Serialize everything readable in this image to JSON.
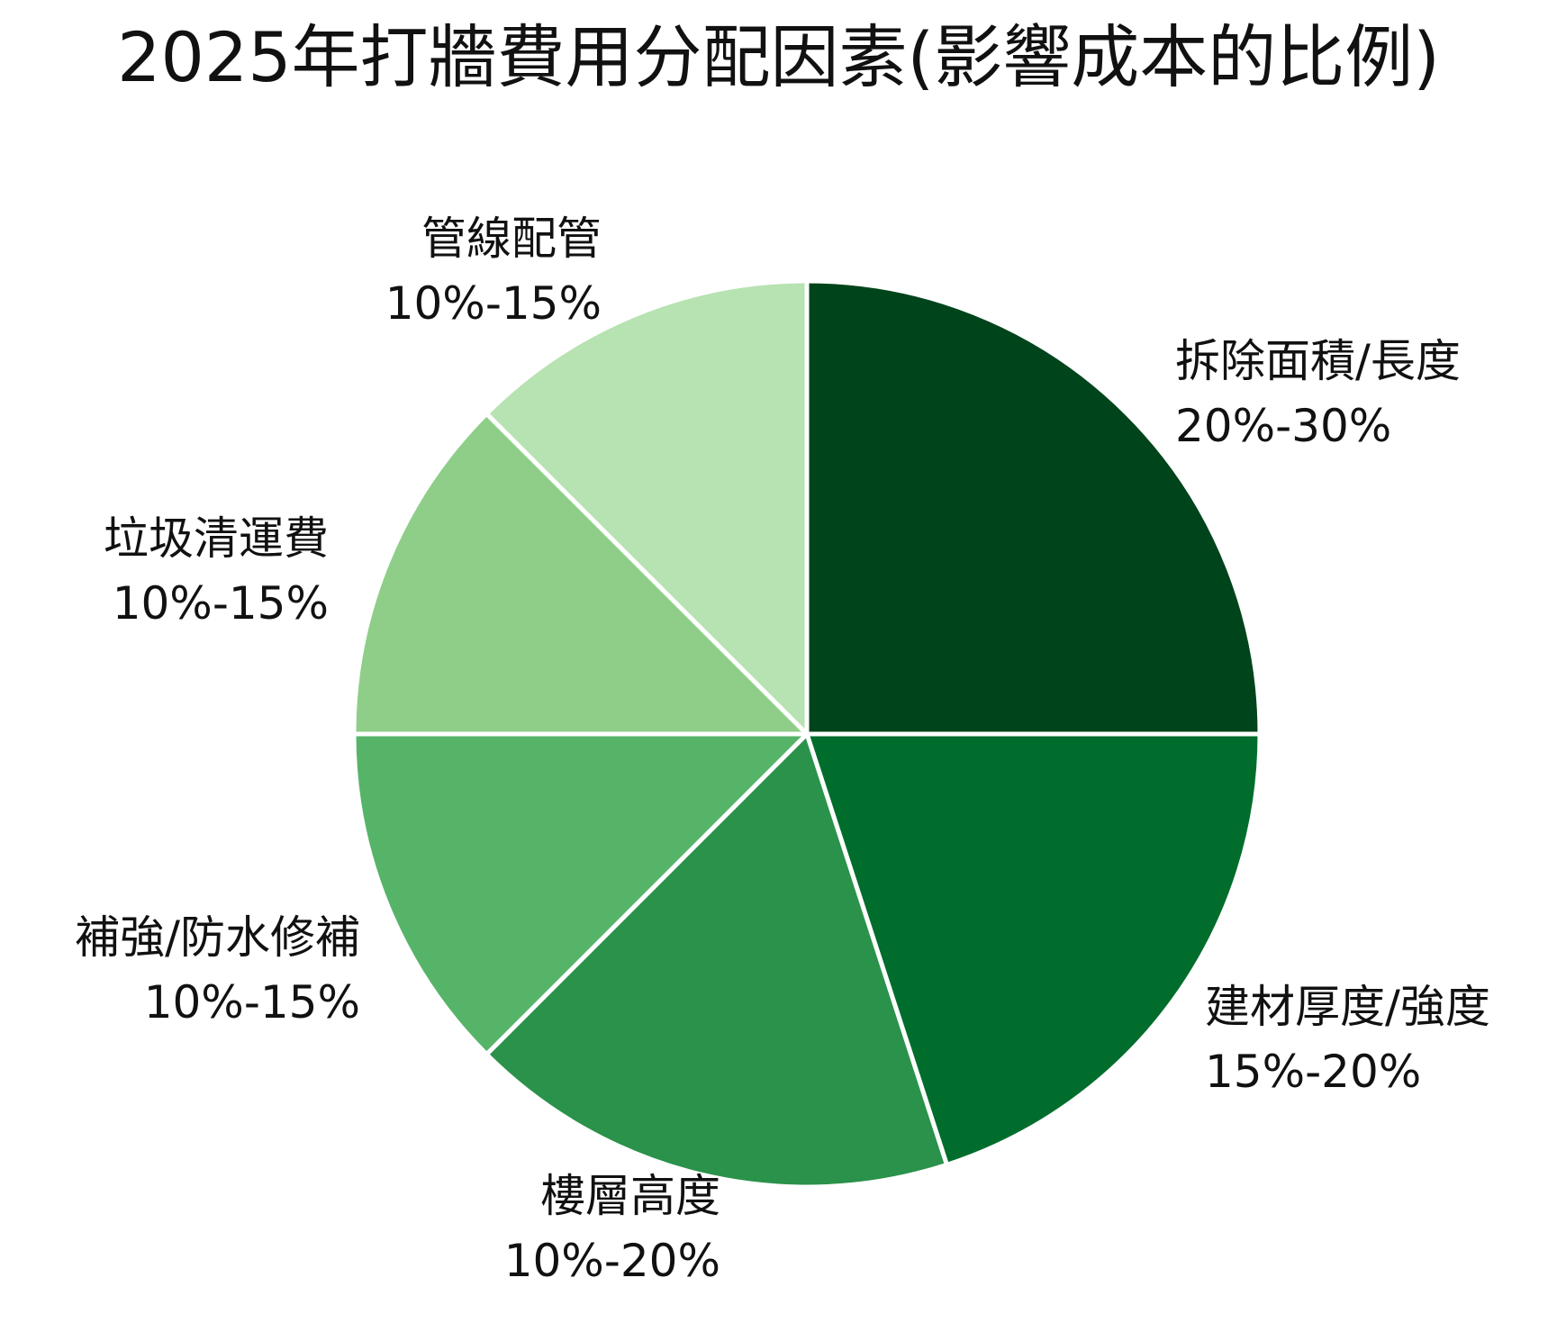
{
  "chart_data": {
    "type": "pie",
    "title": "2025年打牆費用分配因素(影響成本的比例)",
    "slices": [
      {
        "name": "拆除面積/長度",
        "range_label": "20%-30%",
        "value": 25,
        "color": "#00441b"
      },
      {
        "name": "建材厚度/強度",
        "range_label": "15%-20%",
        "value": 20,
        "color": "#006d2c"
      },
      {
        "name": "樓層高度",
        "range_label": "10%-20%",
        "value": 17.5,
        "color": "#2a924a"
      },
      {
        "name": "補強/防水修補",
        "range_label": "10%-15%",
        "value": 12.5,
        "color": "#56b469"
      },
      {
        "name": "垃圾清運費",
        "range_label": "10%-15%",
        "value": 12.5,
        "color": "#8ece88"
      },
      {
        "name": "管線配管",
        "range_label": "10%-15%",
        "value": 12.5,
        "color": "#b7e2b1"
      }
    ],
    "start_angle": "12-o'clock",
    "direction": "clockwise",
    "legend": "none"
  }
}
